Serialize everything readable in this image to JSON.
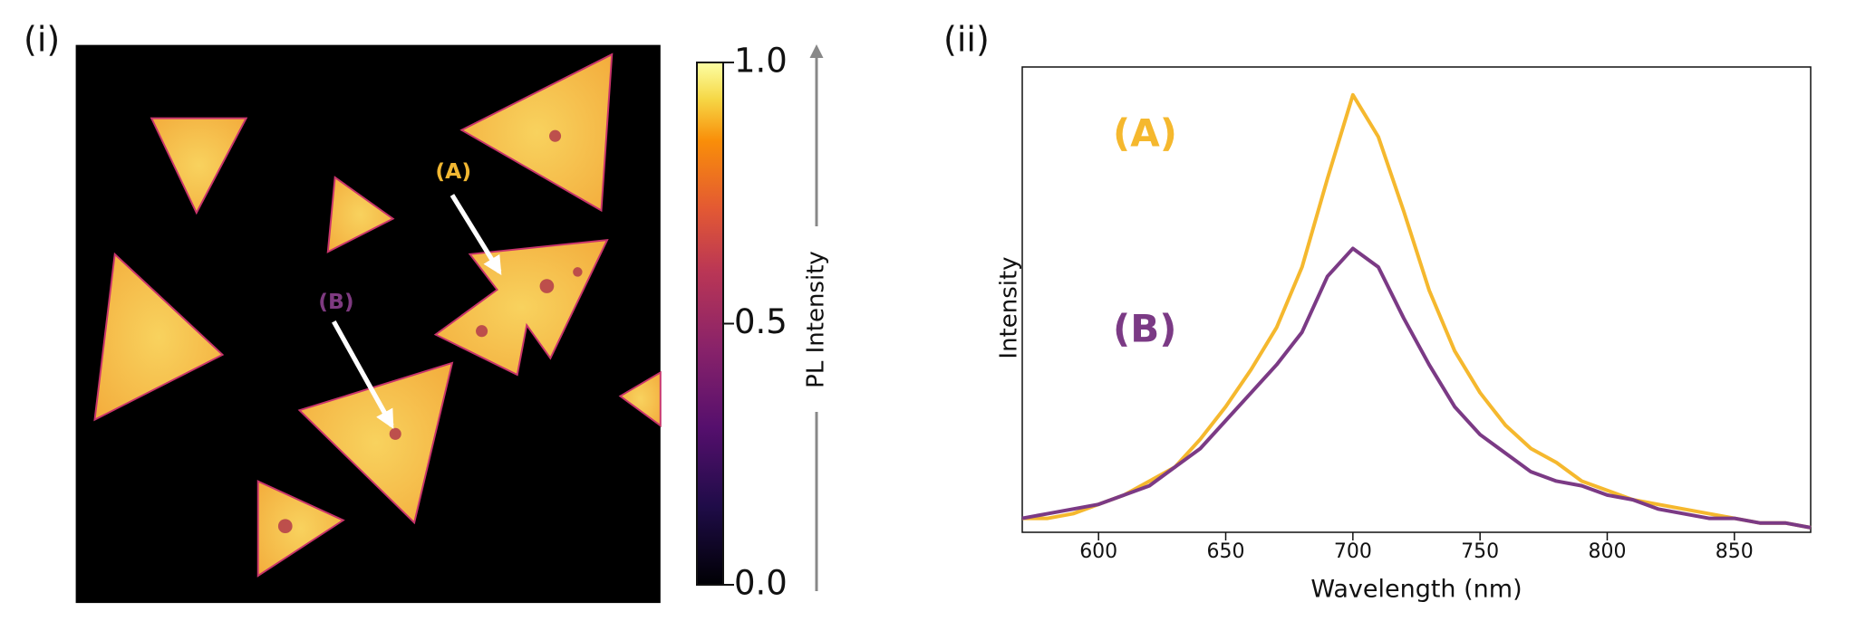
{
  "chart_data": [
    {
      "type": "image",
      "panel_label": "(i)",
      "annotations": [
        "(A)",
        "(B)"
      ],
      "colorbar": {
        "label": "PL Intensity",
        "lim": [
          0,
          1
        ],
        "ticks": [
          {
            "value": 0,
            "label": "0.0"
          },
          {
            "value": 0.5,
            "label": "0.5"
          },
          {
            "value": 1,
            "label": "1.0"
          }
        ]
      }
    },
    {
      "type": "line",
      "panel_label": "(ii)",
      "xlabel": "Wavelength (nm)",
      "ylabel": "Intensity",
      "xlim": [
        570,
        880
      ],
      "xticks": [
        600,
        650,
        700,
        750,
        800,
        850
      ],
      "ylim": [
        0,
        1
      ],
      "x": [
        570,
        580,
        590,
        600,
        610,
        620,
        630,
        640,
        650,
        660,
        670,
        680,
        690,
        700,
        710,
        720,
        730,
        740,
        750,
        760,
        770,
        780,
        790,
        800,
        810,
        820,
        830,
        840,
        850,
        860,
        870,
        880
      ],
      "series": [
        {
          "name": "(A)",
          "color": "#f5b82e",
          "values": [
            0.03,
            0.03,
            0.04,
            0.06,
            0.08,
            0.11,
            0.14,
            0.2,
            0.27,
            0.35,
            0.44,
            0.57,
            0.76,
            0.94,
            0.85,
            0.69,
            0.52,
            0.39,
            0.3,
            0.23,
            0.18,
            0.15,
            0.11,
            0.09,
            0.07,
            0.06,
            0.05,
            0.04,
            0.03,
            0.02,
            0.02,
            0.01
          ]
        },
        {
          "name": "(B)",
          "color": "#7b3a85",
          "values": [
            0.03,
            0.04,
            0.05,
            0.06,
            0.08,
            0.1,
            0.14,
            0.18,
            0.24,
            0.3,
            0.36,
            0.43,
            0.55,
            0.61,
            0.57,
            0.46,
            0.36,
            0.27,
            0.21,
            0.17,
            0.13,
            0.11,
            0.1,
            0.08,
            0.07,
            0.05,
            0.04,
            0.03,
            0.03,
            0.02,
            0.02,
            0.01
          ]
        }
      ]
    }
  ]
}
